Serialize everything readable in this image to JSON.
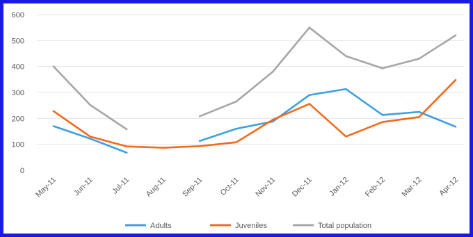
{
  "chart_data": {
    "type": "line",
    "title": "",
    "xlabel": "",
    "ylabel": "",
    "categories": [
      "May-11",
      "Jun-11",
      "Jul-11",
      "Aug-11",
      "Sep-11",
      "Oct-11",
      "Nov-11",
      "Dec-11",
      "Jan-12",
      "Feb-12",
      "Mar-12",
      "Apr-12"
    ],
    "ylim": [
      0,
      600
    ],
    "yticks": [
      "0",
      "100",
      "200",
      "300",
      "400",
      "500",
      "600"
    ],
    "grid": true,
    "legend_position": "bottom",
    "series": [
      {
        "name": "Adults",
        "color": "#3d9fe0",
        "values": [
          170,
          122,
          68,
          null,
          113,
          160,
          188,
          290,
          313,
          213,
          225,
          168
        ]
      },
      {
        "name": "Juveniles",
        "color": "#f26a1b",
        "values": [
          228,
          130,
          92,
          87,
          93,
          108,
          195,
          256,
          130,
          186,
          205,
          348
        ]
      },
      {
        "name": "Total population",
        "color": "#a6a6a6",
        "values": [
          400,
          252,
          158,
          null,
          208,
          265,
          380,
          550,
          440,
          393,
          430,
          520
        ]
      }
    ]
  }
}
